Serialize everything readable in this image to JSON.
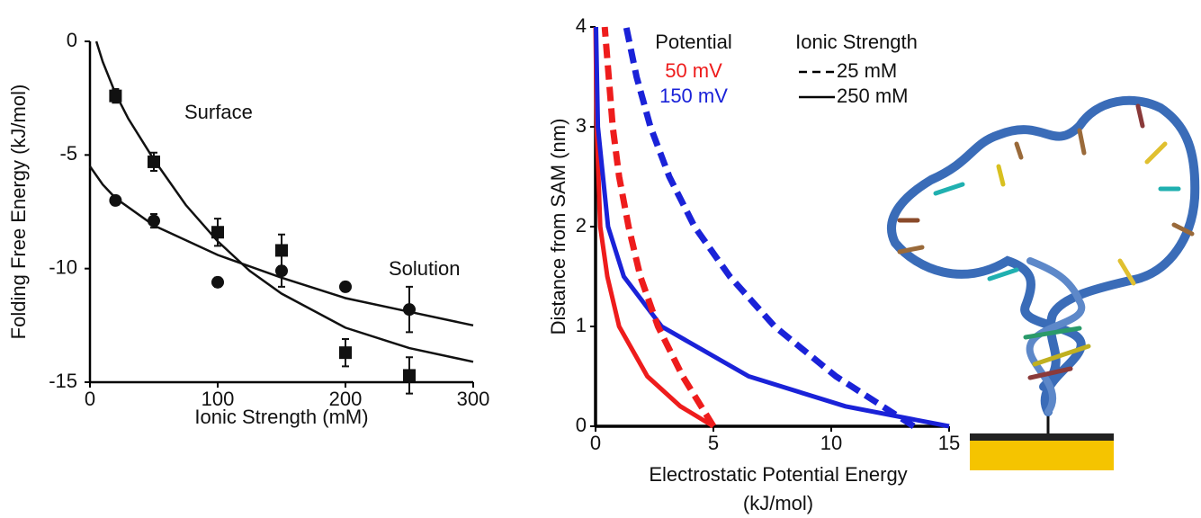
{
  "chart_data": [
    {
      "type": "scatter",
      "ylabel": "Folding Free Energy (kJ/mol)",
      "xlabel": "Ionic Strength (mM)",
      "xlim": [
        0,
        300
      ],
      "xticks": [
        0,
        100,
        200,
        300
      ],
      "ylim": [
        -15,
        0
      ],
      "yticks": [
        0,
        -5,
        -10,
        -15
      ],
      "color": "#111111",
      "series": [
        {
          "name": "Surface",
          "marker": "square",
          "x": [
            20,
            50,
            100,
            150,
            200,
            250
          ],
          "values": [
            -2.4,
            -5.3,
            -8.4,
            -9.2,
            -13.7,
            -14.7
          ],
          "errors": [
            0.3,
            0.4,
            0.6,
            0.7,
            0.6,
            0.8
          ]
        },
        {
          "name": "Solution",
          "marker": "circle",
          "x": [
            20,
            50,
            100,
            150,
            200,
            250
          ],
          "values": [
            -7.0,
            -7.9,
            -10.6,
            -10.1,
            -10.8,
            -11.8
          ],
          "errors": [
            0.2,
            0.3,
            0.2,
            0.7,
            0.2,
            1.0
          ]
        }
      ],
      "fits": [
        {
          "x": [
            5,
            10,
            20,
            30,
            50,
            75,
            100,
            125,
            150,
            200,
            250,
            300
          ],
          "values": [
            0,
            -0.9,
            -2.3,
            -3.4,
            -5.2,
            -7.2,
            -8.8,
            -10.1,
            -11.1,
            -12.6,
            -13.5,
            -14.1
          ]
        },
        {
          "x": [
            0,
            10,
            20,
            50,
            100,
            150,
            200,
            250,
            300
          ],
          "values": [
            -5.5,
            -6.3,
            -6.9,
            -8.1,
            -9.4,
            -10.4,
            -11.3,
            -11.9,
            -12.5
          ]
        }
      ]
    },
    {
      "type": "line",
      "ylabel": "Distance from SAM (nm)",
      "xlabel": [
        "Electrostatic Potential Energy",
        "(kJ/mol)"
      ],
      "xlim": [
        0,
        15
      ],
      "xticks": [
        0,
        5,
        10,
        15
      ],
      "ylim": [
        0,
        4
      ],
      "yticks": [
        0,
        1,
        2,
        3,
        4
      ],
      "legend": {
        "potential_title": "Potential",
        "ionic_title": "Ionic Strength",
        "potential": [
          {
            "label": "50 mV",
            "color": "#ee1c1c"
          },
          {
            "label": "150 mV",
            "color": "#1a22d8"
          }
        ],
        "ionic": [
          {
            "label": "25 mM",
            "dashed": true
          },
          {
            "label": "250 mM",
            "dashed": false
          }
        ]
      },
      "series": [
        {
          "potential": 0,
          "ionic": 1,
          "x": [
            5,
            3.6,
            2.2,
            1.0,
            0.5,
            0.2,
            0.05,
            0
          ],
          "values": [
            0,
            0.2,
            0.5,
            1,
            1.5,
            2,
            3,
            4
          ]
        },
        {
          "potential": 1,
          "ionic": 1,
          "x": [
            15,
            10.6,
            6.5,
            2.8,
            1.2,
            0.53,
            0.1,
            0.02
          ],
          "values": [
            0,
            0.2,
            0.5,
            1,
            1.5,
            2,
            3,
            4
          ]
        },
        {
          "potential": 0,
          "ionic": 0,
          "x": [
            5,
            3.7,
            2.65,
            1.9,
            1.4,
            1.0,
            0.73,
            0.39
          ],
          "values": [
            0,
            0.5,
            1,
            1.5,
            2,
            2.5,
            3,
            4
          ]
        },
        {
          "potential": 1,
          "ionic": 0,
          "x": [
            13.5,
            10.2,
            7.6,
            5.7,
            4.2,
            3.13,
            2.33,
            1.74,
            1.3
          ],
          "values": [
            0,
            0.5,
            1,
            1.5,
            2,
            2.5,
            3,
            3.5,
            4
          ]
        }
      ]
    }
  ]
}
